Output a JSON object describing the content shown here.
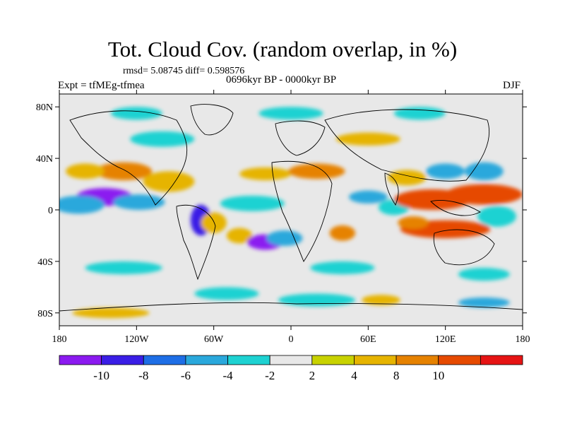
{
  "title": "Tot. Cloud Cov. (random overlap, in %)",
  "stats": "rmsd= 5.08745 diff= 0.598576",
  "period": "0696kyr BP - 0000kyr BP",
  "experiment": "Expt = tfMEg-tfmea",
  "season": "DJF",
  "map": {
    "y_ticks": [
      {
        "label": "80N",
        "lat": 80
      },
      {
        "label": "40N",
        "lat": 40
      },
      {
        "label": "0",
        "lat": 0
      },
      {
        "label": "40S",
        "lat": -40
      },
      {
        "label": "80S",
        "lat": -80
      }
    ],
    "x_ticks": [
      {
        "label": "180",
        "lon": -180
      },
      {
        "label": "120W",
        "lon": -120
      },
      {
        "label": "60W",
        "lon": -60
      },
      {
        "label": "0",
        "lon": 0
      },
      {
        "label": "60E",
        "lon": 60
      },
      {
        "label": "120E",
        "lon": 120
      },
      {
        "label": "180",
        "lon": 180
      }
    ],
    "lon_range": [
      -180,
      180
    ],
    "lat_range": [
      -90,
      90
    ],
    "background_color": "#e8e8e8",
    "field_anomalies": [
      {
        "lon": -145,
        "lat": 10,
        "dlon": 22,
        "dlat": 7,
        "value": -11
      },
      {
        "lon": -118,
        "lat": 6,
        "dlon": 20,
        "dlat": 6,
        "value": -6
      },
      {
        "lon": -165,
        "lat": 4,
        "dlon": 20,
        "dlat": 7,
        "value": -5
      },
      {
        "lon": -130,
        "lat": 30,
        "dlon": 22,
        "dlat": 7,
        "value": 9
      },
      {
        "lon": -95,
        "lat": 22,
        "dlon": 20,
        "dlat": 8,
        "value": 7
      },
      {
        "lon": -160,
        "lat": 30,
        "dlon": 15,
        "dlat": 6,
        "value": 6
      },
      {
        "lon": -70,
        "lat": -8,
        "dlon": 8,
        "dlat": 12,
        "value": -9
      },
      {
        "lon": -60,
        "lat": -10,
        "dlon": 10,
        "dlat": 8,
        "value": 7
      },
      {
        "lon": -40,
        "lat": -20,
        "dlon": 10,
        "dlat": 6,
        "value": 5
      },
      {
        "lon": -20,
        "lat": -25,
        "dlon": 14,
        "dlat": 6,
        "value": -11
      },
      {
        "lon": -5,
        "lat": -22,
        "dlon": 14,
        "dlat": 6,
        "value": -6
      },
      {
        "lon": -30,
        "lat": 5,
        "dlon": 25,
        "dlat": 6,
        "value": -4
      },
      {
        "lon": -20,
        "lat": 28,
        "dlon": 20,
        "dlat": 5,
        "value": 6
      },
      {
        "lon": 20,
        "lat": 30,
        "dlon": 22,
        "dlat": 6,
        "value": 8
      },
      {
        "lon": 40,
        "lat": -18,
        "dlon": 10,
        "dlat": 6,
        "value": 8
      },
      {
        "lon": 60,
        "lat": 10,
        "dlon": 15,
        "dlat": 5,
        "value": -5
      },
      {
        "lon": 80,
        "lat": 2,
        "dlon": 12,
        "dlat": 6,
        "value": -4
      },
      {
        "lon": 110,
        "lat": 8,
        "dlon": 30,
        "dlat": 8,
        "value": 11
      },
      {
        "lon": 150,
        "lat": 12,
        "dlon": 30,
        "dlat": 8,
        "value": 11
      },
      {
        "lon": 120,
        "lat": -15,
        "dlon": 35,
        "dlat": 7,
        "value": 11
      },
      {
        "lon": 95,
        "lat": -10,
        "dlon": 12,
        "dlat": 5,
        "value": 8
      },
      {
        "lon": 160,
        "lat": -5,
        "dlon": 15,
        "dlat": 8,
        "value": -4
      },
      {
        "lon": 120,
        "lat": 30,
        "dlon": 15,
        "dlat": 6,
        "value": -5
      },
      {
        "lon": 150,
        "lat": 30,
        "dlon": 15,
        "dlat": 7,
        "value": -5
      },
      {
        "lon": 90,
        "lat": 25,
        "dlon": 15,
        "dlat": 6,
        "value": 6
      },
      {
        "lon": -100,
        "lat": 55,
        "dlon": 25,
        "dlat": 6,
        "value": -3
      },
      {
        "lon": 60,
        "lat": 55,
        "dlon": 25,
        "dlat": 5,
        "value": 4
      },
      {
        "lon": -130,
        "lat": -45,
        "dlon": 30,
        "dlat": 5,
        "value": -3
      },
      {
        "lon": 40,
        "lat": -45,
        "dlon": 25,
        "dlat": 5,
        "value": -3
      },
      {
        "lon": 150,
        "lat": -50,
        "dlon": 20,
        "dlat": 5,
        "value": -3
      },
      {
        "lon": -50,
        "lat": -65,
        "dlon": 25,
        "dlat": 5,
        "value": -4
      },
      {
        "lon": 20,
        "lat": -70,
        "dlon": 30,
        "dlat": 5,
        "value": -4
      },
      {
        "lon": 150,
        "lat": -72,
        "dlon": 20,
        "dlat": 4,
        "value": -5
      },
      {
        "lon": 70,
        "lat": -70,
        "dlon": 15,
        "dlat": 4,
        "value": 4
      },
      {
        "lon": -140,
        "lat": -80,
        "dlon": 30,
        "dlat": 4,
        "value": 4
      },
      {
        "lon": 0,
        "lat": 75,
        "dlon": 25,
        "dlat": 5,
        "value": -3
      },
      {
        "lon": -120,
        "lat": 75,
        "dlon": 20,
        "dlat": 5,
        "value": -3
      },
      {
        "lon": 100,
        "lat": 75,
        "dlon": 20,
        "dlat": 5,
        "value": -3
      }
    ]
  },
  "colorbar": {
    "colors": [
      "#8b1af0",
      "#3a1ee6",
      "#1e6ee6",
      "#2aa8dc",
      "#1ed2d2",
      "#e8e8e8",
      "#c8d200",
      "#e6b400",
      "#e68200",
      "#e64a00",
      "#e61414"
    ],
    "labels": [
      "-10",
      "-8",
      "-6",
      "-4",
      "-2",
      "2",
      "4",
      "8",
      "10"
    ]
  }
}
